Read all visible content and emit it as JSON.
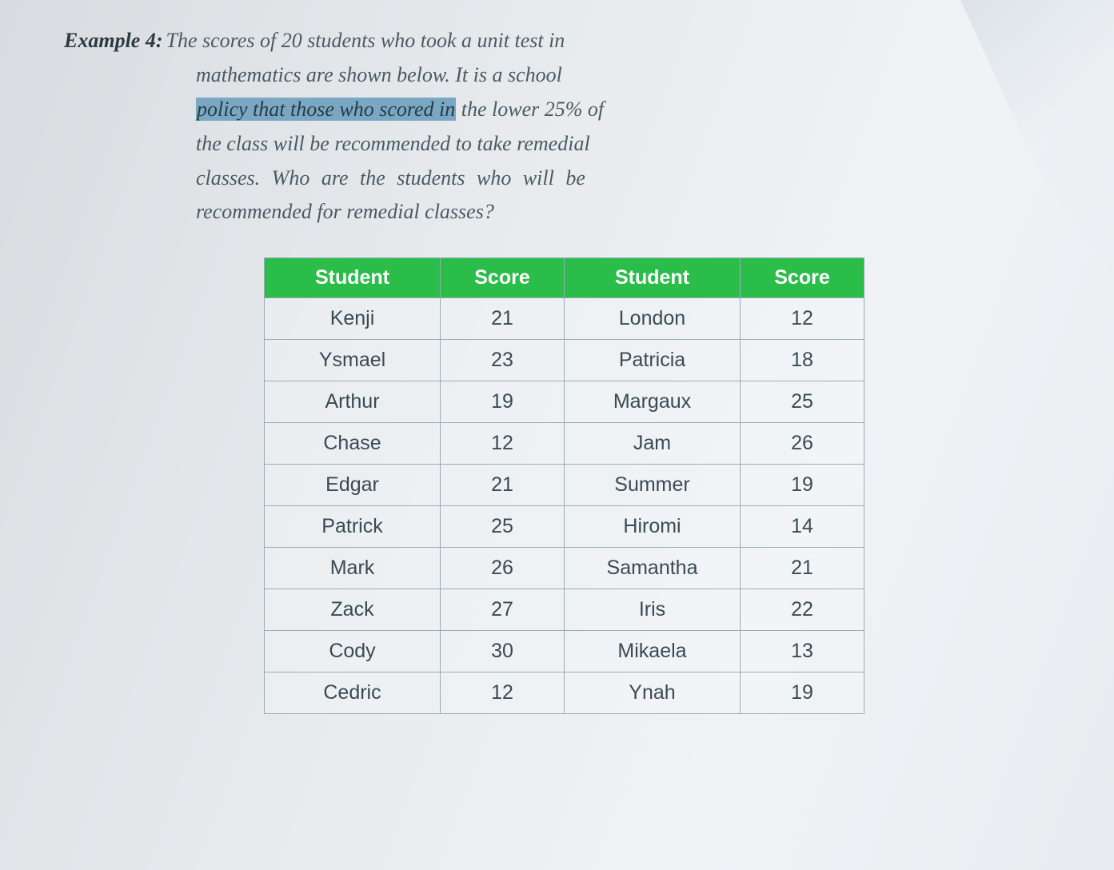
{
  "example": {
    "label": "Example 4:",
    "line1_after_label": " The scores of 20 students who took a unit test in",
    "line2": "mathematics are shown below. It is a school",
    "line3_pre": "",
    "line3_highlight": "policy that those who scored in",
    "line3_post": " the lower 25% of",
    "line4": "the class will be recommended to take remedial",
    "line5": "classes. Who are the students who will be",
    "line6": "recommended for remedial classes?"
  },
  "table": {
    "headers": {
      "student": "Student",
      "score": "Score"
    },
    "header_bg": "#2bbd4a",
    "header_fg": "#ffffff",
    "border_color": "#9aadb5",
    "cell_fontsize": 25,
    "rows": [
      {
        "s1": "Kenji",
        "v1": "21",
        "s2": "London",
        "v2": "12"
      },
      {
        "s1": "Ysmael",
        "v1": "23",
        "s2": "Patricia",
        "v2": "18"
      },
      {
        "s1": "Arthur",
        "v1": "19",
        "s2": "Margaux",
        "v2": "25"
      },
      {
        "s1": "Chase",
        "v1": "12",
        "s2": "Jam",
        "v2": "26"
      },
      {
        "s1": "Edgar",
        "v1": "21",
        "s2": "Summer",
        "v2": "19"
      },
      {
        "s1": "Patrick",
        "v1": "25",
        "s2": "Hiromi",
        "v2": "14"
      },
      {
        "s1": "Mark",
        "v1": "26",
        "s2": "Samantha",
        "v2": "21"
      },
      {
        "s1": "Zack",
        "v1": "27",
        "s2": "Iris",
        "v2": "22"
      },
      {
        "s1": "Cody",
        "v1": "30",
        "s2": "Mikaela",
        "v2": "13"
      },
      {
        "s1": "Cedric",
        "v1": "12",
        "s2": "Ynah",
        "v2": "19"
      }
    ]
  }
}
